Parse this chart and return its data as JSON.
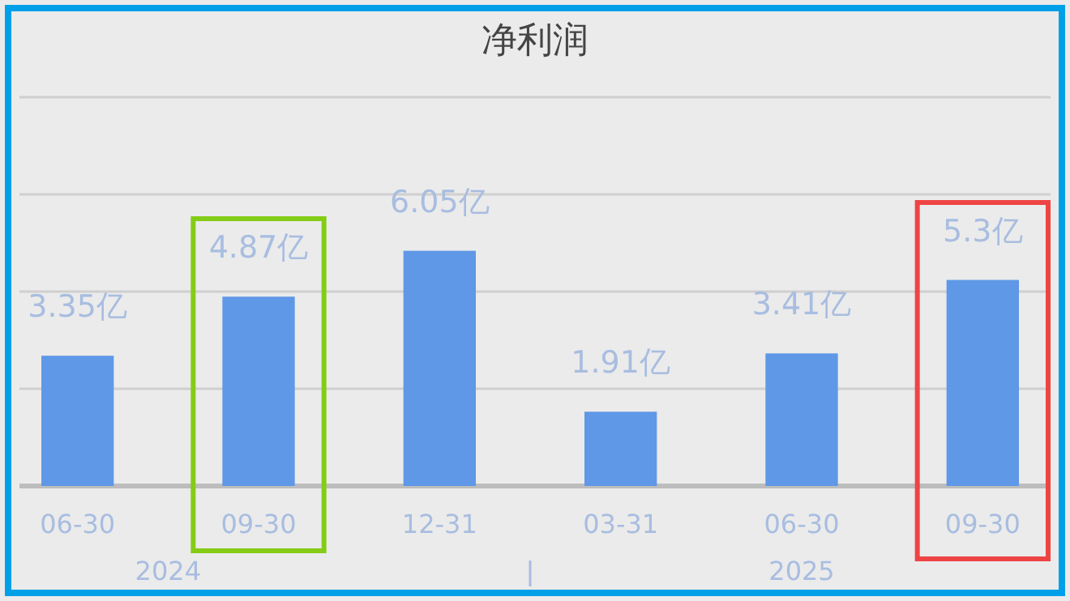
{
  "chart_data": {
    "type": "bar",
    "title": "净利润",
    "categories": [
      "06-30",
      "09-30",
      "12-31",
      "03-31",
      "06-30",
      "09-30"
    ],
    "values": [
      3.35,
      4.87,
      6.05,
      1.91,
      3.41,
      5.3
    ],
    "value_labels": [
      "3.35亿",
      "4.87亿",
      "6.05亿",
      "1.91亿",
      "3.41亿",
      "5.3亿"
    ],
    "color": "#5f98e6",
    "ylim": [
      0,
      10
    ],
    "yticks": [
      {
        "value": 0,
        "label": null
      },
      {
        "value": 2.5,
        "label": null
      },
      {
        "value": 5,
        "label": null
      },
      {
        "value": 7.5,
        "label": null
      },
      {
        "value": 10,
        "label": null
      }
    ],
    "tick_labels": "x",
    "grid": "y",
    "annotations": [
      "2024",
      "2025"
    ]
  }
}
